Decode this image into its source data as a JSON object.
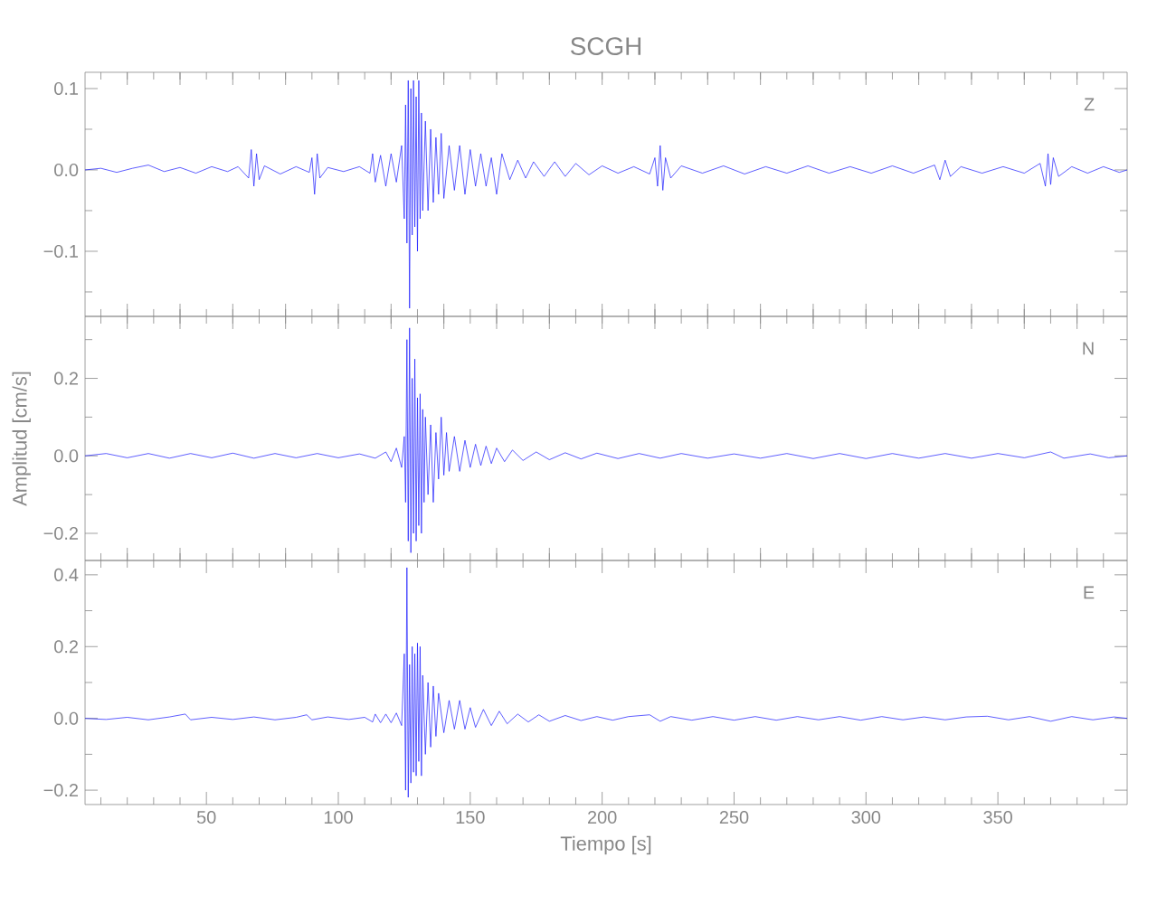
{
  "chart_data": [
    {
      "type": "line",
      "title": "SCGH",
      "annotations": [
        "Z"
      ],
      "tick_labels": "y",
      "color": "#1a1aff",
      "xlim": [
        4,
        399
      ],
      "ylim": [
        -0.18,
        0.12
      ],
      "xticks": [
        {
          "value": 10,
          "label": null
        },
        {
          "value": 20,
          "label": null
        },
        {
          "value": 30,
          "label": null
        },
        {
          "value": 40,
          "label": null
        },
        {
          "value": 50,
          "label": null
        },
        {
          "value": 60,
          "label": null
        },
        {
          "value": 70,
          "label": null
        },
        {
          "value": 80,
          "label": null
        },
        {
          "value": 90,
          "label": null
        },
        {
          "value": 100,
          "label": null
        },
        {
          "value": 110,
          "label": null
        },
        {
          "value": 120,
          "label": null
        },
        {
          "value": 130,
          "label": null
        },
        {
          "value": 140,
          "label": null
        },
        {
          "value": 150,
          "label": null
        },
        {
          "value": 160,
          "label": null
        },
        {
          "value": 170,
          "label": null
        },
        {
          "value": 180,
          "label": null
        },
        {
          "value": 190,
          "label": null
        },
        {
          "value": 200,
          "label": null
        },
        {
          "value": 210,
          "label": null
        },
        {
          "value": 220,
          "label": null
        },
        {
          "value": 230,
          "label": null
        },
        {
          "value": 240,
          "label": null
        },
        {
          "value": 250,
          "label": null
        },
        {
          "value": 260,
          "label": null
        },
        {
          "value": 270,
          "label": null
        },
        {
          "value": 280,
          "label": null
        },
        {
          "value": 290,
          "label": null
        },
        {
          "value": 300,
          "label": null
        },
        {
          "value": 310,
          "label": null
        },
        {
          "value": 320,
          "label": null
        },
        {
          "value": 330,
          "label": null
        },
        {
          "value": 340,
          "label": null
        },
        {
          "value": 350,
          "label": null
        },
        {
          "value": 360,
          "label": null
        },
        {
          "value": 370,
          "label": null
        },
        {
          "value": 380,
          "label": null
        },
        {
          "value": 390,
          "label": null
        }
      ],
      "yticks": [
        {
          "value": -0.15,
          "label": null
        },
        {
          "value": -0.1,
          "label": "−0.1"
        },
        {
          "value": -0.05,
          "label": null
        },
        {
          "value": 0.0,
          "label": "0.0"
        },
        {
          "value": 0.05,
          "label": null
        },
        {
          "value": 0.1,
          "label": "0.1"
        }
      ],
      "x": [
        4,
        10,
        16,
        22,
        28,
        34,
        40,
        46,
        52,
        58,
        62,
        66,
        67,
        68,
        69,
        70,
        72,
        78,
        84,
        89,
        90,
        91,
        92,
        93,
        96,
        102,
        108,
        112,
        113,
        114,
        116,
        118,
        120,
        122,
        124,
        125,
        125.5,
        126,
        126.5,
        127,
        127.5,
        128,
        128.5,
        129,
        129.5,
        130,
        130.5,
        131,
        131.5,
        132,
        133,
        134,
        135,
        136,
        137,
        138,
        139,
        140,
        142,
        144,
        146,
        148,
        150,
        152,
        154,
        156,
        158,
        160,
        162,
        165,
        168,
        171,
        174,
        178,
        182,
        186,
        190,
        195,
        200,
        206,
        212,
        218,
        220,
        221,
        222,
        223,
        224,
        226,
        230,
        238,
        246,
        254,
        262,
        270,
        278,
        286,
        294,
        302,
        310,
        318,
        326,
        328,
        330,
        332,
        336,
        344,
        352,
        360,
        366,
        368,
        369,
        370,
        371,
        373,
        378,
        384,
        390,
        396,
        399
      ],
      "values": [
        0,
        0.002,
        -0.003,
        0.002,
        0.006,
        -0.002,
        0.003,
        -0.004,
        0.004,
        -0.002,
        0.004,
        -0.01,
        0.025,
        -0.02,
        0.02,
        -0.012,
        0.005,
        -0.005,
        0.004,
        -0.003,
        0.015,
        -0.03,
        0.02,
        -0.01,
        0.003,
        -0.002,
        0.004,
        -0.004,
        0.02,
        -0.015,
        0.018,
        -0.02,
        0.02,
        -0.015,
        0.03,
        -0.06,
        0.08,
        -0.09,
        0.11,
        -0.17,
        0.1,
        -0.08,
        0.11,
        -0.07,
        0.09,
        -0.1,
        0.11,
        -0.06,
        0.07,
        -0.05,
        0.06,
        -0.05,
        0.05,
        -0.04,
        0.04,
        -0.03,
        0.045,
        -0.035,
        0.03,
        -0.025,
        0.03,
        -0.03,
        0.025,
        -0.02,
        0.02,
        -0.02,
        0.015,
        -0.03,
        0.02,
        -0.012,
        0.012,
        -0.01,
        0.01,
        -0.008,
        0.01,
        -0.008,
        0.008,
        -0.006,
        0.005,
        -0.004,
        0.004,
        -0.005,
        0.015,
        -0.02,
        0.03,
        -0.025,
        0.015,
        -0.01,
        0.005,
        -0.004,
        0.005,
        -0.005,
        0.004,
        -0.004,
        0.005,
        -0.004,
        0.004,
        -0.004,
        0.005,
        -0.004,
        0.006,
        -0.012,
        0.012,
        -0.008,
        0.004,
        -0.004,
        0.004,
        -0.004,
        0.008,
        -0.02,
        0.02,
        -0.018,
        0.015,
        -0.008,
        0.004,
        -0.004,
        0.004,
        -0.003,
        0
      ]
    },
    {
      "type": "line",
      "ylabel": "Amplitud [cm/s]",
      "annotations": [
        "N"
      ],
      "tick_labels": "y",
      "color": "#1a1aff",
      "xlim": [
        4,
        399
      ],
      "ylim": [
        -0.27,
        0.36
      ],
      "xticks": [
        {
          "value": 10,
          "label": null
        },
        {
          "value": 20,
          "label": null
        },
        {
          "value": 30,
          "label": null
        },
        {
          "value": 40,
          "label": null
        },
        {
          "value": 50,
          "label": null
        },
        {
          "value": 60,
          "label": null
        },
        {
          "value": 70,
          "label": null
        },
        {
          "value": 80,
          "label": null
        },
        {
          "value": 90,
          "label": null
        },
        {
          "value": 100,
          "label": null
        },
        {
          "value": 110,
          "label": null
        },
        {
          "value": 120,
          "label": null
        },
        {
          "value": 130,
          "label": null
        },
        {
          "value": 140,
          "label": null
        },
        {
          "value": 150,
          "label": null
        },
        {
          "value": 160,
          "label": null
        },
        {
          "value": 170,
          "label": null
        },
        {
          "value": 180,
          "label": null
        },
        {
          "value": 190,
          "label": null
        },
        {
          "value": 200,
          "label": null
        },
        {
          "value": 210,
          "label": null
        },
        {
          "value": 220,
          "label": null
        },
        {
          "value": 230,
          "label": null
        },
        {
          "value": 240,
          "label": null
        },
        {
          "value": 250,
          "label": null
        },
        {
          "value": 260,
          "label": null
        },
        {
          "value": 270,
          "label": null
        },
        {
          "value": 280,
          "label": null
        },
        {
          "value": 290,
          "label": null
        },
        {
          "value": 300,
          "label": null
        },
        {
          "value": 310,
          "label": null
        },
        {
          "value": 320,
          "label": null
        },
        {
          "value": 330,
          "label": null
        },
        {
          "value": 340,
          "label": null
        },
        {
          "value": 350,
          "label": null
        },
        {
          "value": 360,
          "label": null
        },
        {
          "value": 370,
          "label": null
        },
        {
          "value": 380,
          "label": null
        },
        {
          "value": 390,
          "label": null
        }
      ],
      "yticks": [
        {
          "value": -0.2,
          "label": "−0.2"
        },
        {
          "value": -0.1,
          "label": null
        },
        {
          "value": 0.0,
          "label": "0.0"
        },
        {
          "value": 0.1,
          "label": null
        },
        {
          "value": 0.2,
          "label": "0.2"
        },
        {
          "value": 0.3,
          "label": null
        }
      ],
      "x": [
        4,
        12,
        20,
        28,
        36,
        44,
        52,
        60,
        68,
        76,
        84,
        92,
        100,
        108,
        114,
        118,
        120,
        122,
        124,
        125,
        125.5,
        126,
        126.5,
        127,
        127.5,
        128,
        128.5,
        129,
        129.5,
        130,
        130.5,
        131,
        131.5,
        132,
        132.5,
        133,
        134,
        135,
        136,
        137,
        138,
        139,
        140,
        141,
        142,
        144,
        146,
        148,
        150,
        152,
        154,
        156,
        158,
        160,
        163,
        166,
        170,
        175,
        180,
        186,
        192,
        198,
        206,
        214,
        222,
        230,
        240,
        250,
        260,
        270,
        280,
        290,
        300,
        310,
        320,
        330,
        340,
        350,
        360,
        370,
        375,
        385,
        392,
        399
      ],
      "values": [
        0,
        0.006,
        -0.005,
        0.006,
        -0.006,
        0.006,
        -0.005,
        0.007,
        -0.006,
        0.006,
        -0.005,
        0.006,
        -0.005,
        0.005,
        -0.006,
        0.01,
        -0.015,
        0.02,
        -0.03,
        0.05,
        -0.12,
        0.3,
        -0.22,
        0.33,
        -0.25,
        0.2,
        -0.2,
        0.25,
        -0.22,
        0.15,
        -0.18,
        0.16,
        -0.2,
        0.12,
        -0.12,
        0.1,
        -0.1,
        0.08,
        -0.12,
        0.06,
        -0.06,
        0.1,
        -0.05,
        0.06,
        -0.04,
        0.05,
        -0.04,
        0.04,
        -0.03,
        0.03,
        -0.025,
        0.025,
        -0.02,
        0.02,
        -0.015,
        0.015,
        -0.012,
        0.01,
        -0.01,
        0.008,
        -0.008,
        0.007,
        -0.007,
        0.006,
        -0.006,
        0.006,
        -0.006,
        0.005,
        -0.006,
        0.006,
        -0.007,
        0.006,
        -0.007,
        0.006,
        -0.006,
        0.006,
        -0.006,
        0.006,
        -0.005,
        0.01,
        -0.006,
        0.005,
        -0.005,
        0
      ]
    },
    {
      "type": "line",
      "xlabel": "Tiempo [s]",
      "annotations": [
        "E"
      ],
      "color": "#1a1aff",
      "xlim": [
        4,
        399
      ],
      "ylim": [
        -0.24,
        0.44
      ],
      "xticks": [
        {
          "value": 10,
          "label": null
        },
        {
          "value": 20,
          "label": null
        },
        {
          "value": 30,
          "label": null
        },
        {
          "value": 40,
          "label": null
        },
        50,
        {
          "value": 60,
          "label": null
        },
        {
          "value": 70,
          "label": null
        },
        {
          "value": 80,
          "label": null
        },
        {
          "value": 90,
          "label": null
        },
        100,
        {
          "value": 110,
          "label": null
        },
        {
          "value": 120,
          "label": null
        },
        {
          "value": 130,
          "label": null
        },
        {
          "value": 140,
          "label": null
        },
        150,
        {
          "value": 160,
          "label": null
        },
        {
          "value": 170,
          "label": null
        },
        {
          "value": 180,
          "label": null
        },
        {
          "value": 190,
          "label": null
        },
        200,
        {
          "value": 210,
          "label": null
        },
        {
          "value": 220,
          "label": null
        },
        {
          "value": 230,
          "label": null
        },
        {
          "value": 240,
          "label": null
        },
        250,
        {
          "value": 260,
          "label": null
        },
        {
          "value": 270,
          "label": null
        },
        {
          "value": 280,
          "label": null
        },
        {
          "value": 290,
          "label": null
        },
        300,
        {
          "value": 310,
          "label": null
        },
        {
          "value": 320,
          "label": null
        },
        {
          "value": 330,
          "label": null
        },
        {
          "value": 340,
          "label": null
        },
        350,
        {
          "value": 360,
          "label": null
        },
        {
          "value": 370,
          "label": null
        },
        {
          "value": 380,
          "label": null
        },
        {
          "value": 390,
          "label": null
        }
      ],
      "yticks": [
        {
          "value": -0.2,
          "label": "−0.2"
        },
        {
          "value": -0.1,
          "label": null
        },
        {
          "value": 0.0,
          "label": "0.0"
        },
        {
          "value": 0.1,
          "label": null
        },
        {
          "value": 0.2,
          "label": "0.2"
        },
        {
          "value": 0.3,
          "label": null
        },
        {
          "value": 0.4,
          "label": "0.4"
        }
      ],
      "x": [
        4,
        12,
        20,
        28,
        36,
        42,
        44,
        52,
        60,
        68,
        76,
        84,
        88,
        90,
        96,
        104,
        110,
        113,
        114,
        116,
        118,
        120,
        122,
        124,
        125,
        125.5,
        126,
        126.5,
        127,
        127.5,
        128,
        128.5,
        129,
        129.5,
        130,
        130.5,
        131,
        131.5,
        132,
        133,
        134,
        135,
        136,
        137,
        138,
        140,
        142,
        144,
        146,
        148,
        150,
        152,
        155,
        158,
        161,
        164,
        168,
        172,
        176,
        180,
        186,
        192,
        198,
        204,
        210,
        218,
        222,
        226,
        234,
        242,
        250,
        258,
        266,
        274,
        282,
        290,
        298,
        306,
        314,
        322,
        330,
        338,
        346,
        354,
        362,
        370,
        378,
        386,
        394,
        399
      ],
      "values": [
        0,
        -0.003,
        0.003,
        -0.004,
        0.004,
        0.012,
        -0.004,
        0.003,
        -0.003,
        0.004,
        -0.004,
        0.003,
        0.01,
        -0.004,
        0.004,
        -0.003,
        0.003,
        -0.01,
        0.012,
        -0.012,
        0.012,
        -0.012,
        0.015,
        -0.02,
        0.18,
        -0.2,
        0.42,
        -0.22,
        0.15,
        -0.18,
        0.2,
        -0.15,
        0.18,
        -0.16,
        0.21,
        -0.12,
        0.2,
        -0.16,
        0.12,
        -0.1,
        0.1,
        -0.08,
        0.09,
        -0.05,
        0.07,
        -0.04,
        0.05,
        -0.03,
        0.05,
        -0.03,
        0.03,
        -0.025,
        0.025,
        -0.02,
        0.02,
        -0.015,
        0.012,
        -0.01,
        0.01,
        -0.008,
        0.008,
        -0.006,
        0.005,
        -0.005,
        0.005,
        0.01,
        -0.008,
        0.005,
        -0.005,
        0.005,
        -0.005,
        0.005,
        -0.005,
        0.005,
        -0.004,
        0.005,
        -0.005,
        0.005,
        -0.004,
        0.004,
        -0.004,
        0.004,
        0.006,
        -0.004,
        0.005,
        -0.008,
        0.005,
        -0.004,
        0.004,
        0
      ]
    }
  ]
}
